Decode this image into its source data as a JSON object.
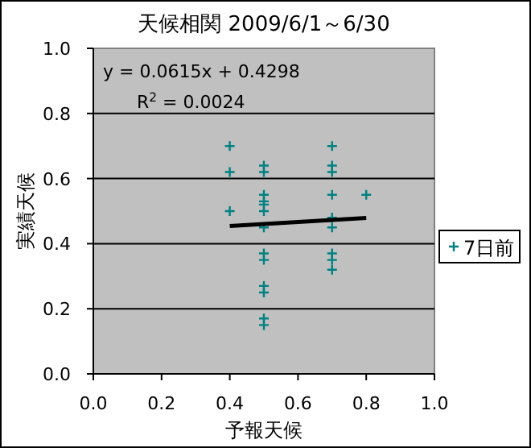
{
  "chart_data": {
    "type": "scatter",
    "title": "天候相関  2009/6/1～6/30",
    "xlabel": "予報天候",
    "ylabel": "実績天候",
    "annotations": [
      "y = 0.0615x + 0.4298",
      "R$^{2}$ = 0.0024"
    ],
    "series": [
      {
        "name": "7日前",
        "color": "#008080",
        "marker": "cross",
        "x": [
          0.4,
          0.4,
          0.4,
          0.5,
          0.5,
          0.5,
          0.5,
          0.5,
          0.5,
          0.5,
          0.5,
          0.5,
          0.5,
          0.5,
          0.5,
          0.5,
          0.7,
          0.7,
          0.7,
          0.7,
          0.7,
          0.7,
          0.7,
          0.7,
          0.7,
          0.8
        ],
        "values": [
          0.7,
          0.62,
          0.5,
          0.64,
          0.62,
          0.55,
          0.53,
          0.52,
          0.5,
          0.45,
          0.37,
          0.35,
          0.27,
          0.25,
          0.17,
          0.15,
          0.7,
          0.64,
          0.62,
          0.55,
          0.48,
          0.45,
          0.37,
          0.35,
          0.32,
          0.55
        ]
      },
      {
        "type": "line",
        "color": "#000000",
        "marker": "none",
        "x": [
          0.4,
          0.8
        ],
        "values": [
          0.4544,
          0.479
        ]
      }
    ],
    "xlim": [
      0,
      1
    ],
    "ylim": [
      0,
      1
    ],
    "xticks": [
      {
        "value": 0,
        "label": "0.0"
      },
      0.2,
      0.4,
      0.6,
      0.8,
      {
        "value": 1,
        "label": "1.0"
      }
    ],
    "yticks": [
      {
        "value": 0,
        "label": "0.0"
      },
      0.2,
      0.4,
      0.6,
      0.8,
      {
        "value": 1,
        "label": "1.0"
      }
    ],
    "grid": "y",
    "legend": "right"
  }
}
